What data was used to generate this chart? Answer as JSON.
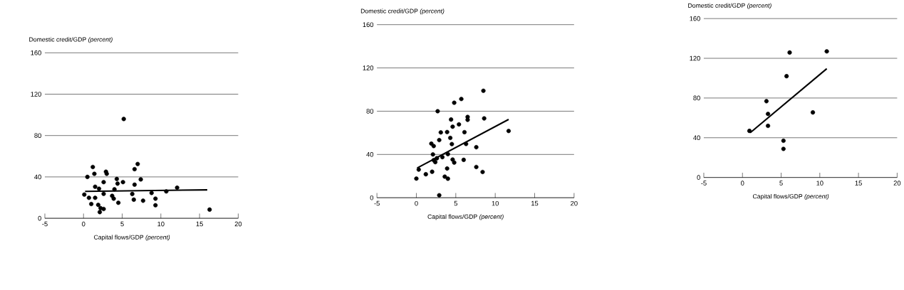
{
  "chart_data": [
    {
      "type": "scatter",
      "ylabel": "Domestic credit/GDP *(percent)*",
      "xlabel": "Capital flows/GDP *(percent)*",
      "xlim": [
        -5,
        20
      ],
      "ylim": [
        0,
        160
      ],
      "xticks": [
        -5,
        0,
        5,
        10,
        15,
        20
      ],
      "yticks": [
        0,
        40,
        80,
        120,
        160
      ],
      "grid": "y",
      "series": [
        {
          "marker": "circle",
          "color": "#000000",
          "x": [
            0.5,
            1.2,
            1.4,
            2.9,
            3.0,
            2.6,
            1.5,
            2.0,
            0.1,
            0.7,
            1.5,
            1.0,
            1.9,
            2.2,
            2.1,
            2.6,
            2.6,
            3.7,
            4.0,
            4.3,
            4.4,
            3.9,
            4.5,
            5.1,
            6.6,
            6.3,
            6.5,
            6.6,
            7.0,
            7.4,
            7.7,
            8.8,
            9.3,
            9.3,
            10.7,
            12.1,
            16.3,
            5.2
          ],
          "values": [
            40,
            49.6,
            43,
            45,
            43,
            35,
            30.5,
            28.6,
            22.9,
            19.8,
            19.8,
            13.8,
            13,
            9.8,
            6,
            9,
            23.6,
            21.7,
            28,
            38,
            33.5,
            19,
            15,
            35,
            32.5,
            23.5,
            18,
            47.5,
            52.5,
            37.6,
            17,
            24.5,
            19,
            12.6,
            26,
            29.6,
            8.4,
            96
          ]
        },
        {
          "type": "line",
          "marker": "none",
          "color": "#000000",
          "x": [
            0.2,
            16
          ],
          "values": [
            26,
            27.5
          ]
        }
      ]
    },
    {
      "type": "scatter",
      "ylabel": "Domestic credit/GDP *(percent)*",
      "xlabel": "Capital flows/GDP *(percent)*",
      "xlim": [
        -5,
        20
      ],
      "ylim": [
        0,
        160
      ],
      "xticks": [
        -5,
        0,
        5,
        10,
        15,
        20
      ],
      "yticks": [
        0,
        40,
        80,
        120,
        160
      ],
      "grid": "y",
      "series": [
        {
          "marker": "circle",
          "color": "#000000",
          "x": [
            0,
            0.3,
            1.2,
            2.0,
            1.9,
            2.2,
            2.1,
            2.2,
            2.6,
            2.4,
            2.9,
            3.1,
            2.7,
            3.3,
            2.9,
            3.6,
            3.9,
            4.0,
            4.0,
            3.9,
            4.3,
            4.5,
            4.6,
            4.4,
            4.6,
            4.8,
            4.8,
            5.4,
            5.7,
            6.0,
            6.1,
            6.3,
            6.5,
            6.5,
            7.6,
            7.6,
            8.4,
            8.6,
            8.5,
            11.7
          ],
          "values": [
            17.7,
            26,
            21.7,
            24,
            50,
            47.8,
            40,
            34.7,
            36.5,
            32.9,
            53.3,
            60.4,
            80,
            37.5,
            2.3,
            19.5,
            27,
            17.6,
            40.3,
            60.7,
            55.3,
            49.6,
            65.7,
            72.3,
            35.3,
            32.5,
            87.8,
            67.8,
            91.3,
            35,
            60.6,
            49.7,
            72,
            74.7,
            46.7,
            28.4,
            23.8,
            73.3,
            98.9,
            61.7
          ]
        },
        {
          "type": "line",
          "marker": "none",
          "color": "#000000",
          "x": [
            0.1,
            11.7
          ],
          "values": [
            27.5,
            72.4
          ]
        }
      ]
    },
    {
      "type": "scatter",
      "ylabel": "Domestic credit/GDP *(percent)*",
      "xlabel": "Capital flows/GDP *(percent)*",
      "xlim": [
        -5,
        20
      ],
      "ylim": [
        0,
        160
      ],
      "xticks": [
        -5,
        0,
        5,
        10,
        15,
        20
      ],
      "yticks": [
        0,
        40,
        80,
        120,
        160
      ],
      "grid": "y",
      "series": [
        {
          "marker": "circle",
          "color": "#000000",
          "x": [
            0.9,
            3.1,
            3.3,
            3.3,
            5.3,
            5.3,
            5.7,
            6.1,
            9.1,
            10.9
          ],
          "values": [
            46.9,
            76.8,
            64,
            52,
            37,
            28.8,
            102,
            125.8,
            65.5,
            127
          ]
        },
        {
          "type": "line",
          "marker": "none",
          "color": "#000000",
          "x": [
            1.0,
            10.9
          ],
          "values": [
            45,
            109.5
          ]
        }
      ]
    }
  ]
}
